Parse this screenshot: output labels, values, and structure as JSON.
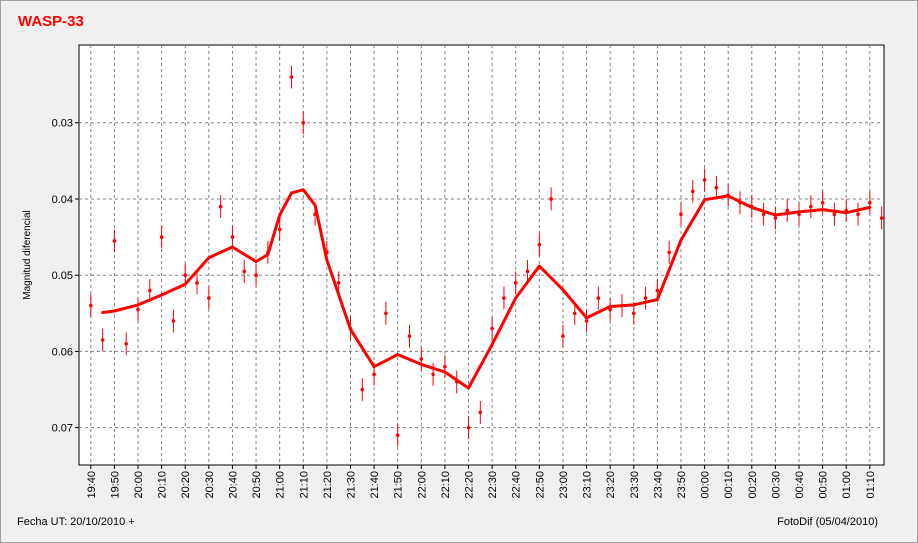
{
  "chart_data": {
    "type": "scatter",
    "title": "WASP-33",
    "y_label": "Magnitud diferencial",
    "footer_left": "Fecha UT: 20/10/2010 +",
    "footer_right": "FotoDif (05/04/2010)",
    "y_inverted": true,
    "grid": true,
    "ylim": [
      0.0198,
      0.0749
    ],
    "yticks": [
      0.03,
      0.04,
      0.05,
      0.06,
      0.07
    ],
    "xlim": [
      "19:35",
      "01:16"
    ],
    "xticks": [
      "19:40",
      "19:50",
      "20:00",
      "20:10",
      "20:20",
      "20:30",
      "20:40",
      "20:50",
      "21:00",
      "21:10",
      "21:20",
      "21:30",
      "21:40",
      "21:50",
      "22:00",
      "22:10",
      "22:20",
      "22:30",
      "22:40",
      "22:50",
      "23:00",
      "23:10",
      "23:20",
      "23:30",
      "23:40",
      "23:50",
      "00:00",
      "00:10",
      "00:20",
      "00:30",
      "00:40",
      "00:50",
      "01:00",
      "01:10"
    ],
    "series": [
      {
        "type": "scatter",
        "color": "#ff0000",
        "error": 0.0015,
        "x": [
          "19:40",
          "19:45",
          "19:50",
          "19:55",
          "20:00",
          "20:05",
          "20:10",
          "20:15",
          "20:20",
          "20:25",
          "20:30",
          "20:35",
          "20:40",
          "20:45",
          "20:50",
          "20:55",
          "21:00",
          "21:05",
          "21:10",
          "21:15",
          "21:20",
          "21:25",
          "21:30",
          "21:35",
          "21:40",
          "21:45",
          "21:50",
          "21:55",
          "22:00",
          "22:05",
          "22:10",
          "22:15",
          "22:20",
          "22:25",
          "22:30",
          "22:35",
          "22:40",
          "22:45",
          "22:50",
          "22:55",
          "23:00",
          "23:05",
          "23:10",
          "23:15",
          "23:20",
          "23:25",
          "23:30",
          "23:35",
          "23:40",
          "23:45",
          "23:50",
          "23:55",
          "00:00",
          "00:05",
          "00:10",
          "00:15",
          "00:20",
          "00:25",
          "00:30",
          "00:35",
          "00:40",
          "00:45",
          "00:50",
          "00:55",
          "01:00",
          "01:05",
          "01:10",
          "01:15"
        ],
        "values": [
          0.054,
          0.0585,
          0.0455,
          0.059,
          0.0545,
          0.052,
          0.045,
          0.056,
          0.05,
          0.051,
          0.053,
          0.041,
          0.045,
          0.0495,
          0.05,
          0.047,
          0.044,
          0.024,
          0.03,
          0.042,
          0.047,
          0.051,
          0.057,
          0.065,
          0.063,
          0.055,
          0.071,
          0.058,
          0.061,
          0.063,
          0.062,
          0.064,
          0.07,
          0.068,
          0.057,
          0.053,
          0.051,
          0.0495,
          0.046,
          0.04,
          0.058,
          0.055,
          0.056,
          0.053,
          0.0545,
          0.054,
          0.055,
          0.053,
          0.052,
          0.047,
          0.042,
          0.039,
          0.0375,
          0.0385,
          0.0395,
          0.0405,
          0.041,
          0.042,
          0.0425,
          0.0415,
          0.042,
          0.041,
          0.0405,
          0.042,
          0.0415,
          0.042,
          0.0405,
          0.0425
        ]
      },
      {
        "type": "line",
        "color": "#ff0000",
        "x": [
          "19:45",
          "19:50",
          "20:00",
          "20:10",
          "20:20",
          "20:30",
          "20:40",
          "20:50",
          "20:55",
          "21:00",
          "21:05",
          "21:10",
          "21:15",
          "21:20",
          "21:30",
          "21:40",
          "21:50",
          "22:00",
          "22:10",
          "22:20",
          "22:30",
          "22:40",
          "22:50",
          "23:00",
          "23:10",
          "23:20",
          "23:30",
          "23:40",
          "23:50",
          "00:00",
          "00:10",
          "00:20",
          "00:30",
          "00:40",
          "00:50",
          "01:00",
          "01:10"
        ],
        "values": [
          0.0549,
          0.0547,
          0.0539,
          0.0526,
          0.0512,
          0.0477,
          0.0463,
          0.0482,
          0.0473,
          0.0421,
          0.0392,
          0.0388,
          0.0408,
          0.048,
          0.0571,
          0.062,
          0.0604,
          0.0617,
          0.0627,
          0.0648,
          0.0591,
          0.053,
          0.0488,
          0.0519,
          0.0556,
          0.0541,
          0.0539,
          0.0532,
          0.0454,
          0.0401,
          0.0396,
          0.0411,
          0.0421,
          0.0417,
          0.0414,
          0.0418,
          0.0411
        ]
      }
    ]
  }
}
